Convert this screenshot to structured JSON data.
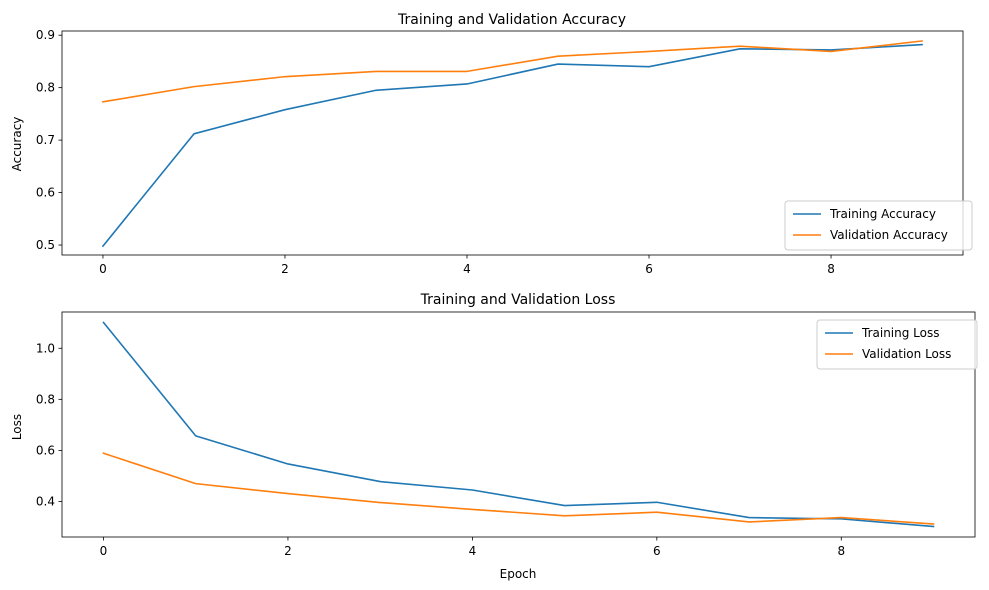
{
  "chart_data": [
    {
      "type": "line",
      "title": "Training and Validation Accuracy",
      "xlabel": "",
      "ylabel": "Accuracy",
      "xlim": [
        -0.45,
        9.45
      ],
      "ylim": [
        0.481,
        0.908
      ],
      "xticks": [
        0,
        2,
        4,
        6,
        8
      ],
      "yticks": [
        0.5,
        0.6,
        0.7,
        0.8,
        0.9
      ],
      "ytick_format": 1,
      "grid": false,
      "legend_position": "lower-right",
      "x": [
        0,
        1,
        2,
        3,
        4,
        5,
        6,
        7,
        8,
        9
      ],
      "series": [
        {
          "name": "Training Accuracy",
          "color": "#1f77b4",
          "values": [
            0.498,
            0.712,
            0.758,
            0.795,
            0.807,
            0.845,
            0.84,
            0.874,
            0.872,
            0.882
          ]
        },
        {
          "name": "Validation Accuracy",
          "color": "#ff7f0e",
          "values": [
            0.773,
            0.802,
            0.821,
            0.831,
            0.831,
            0.86,
            0.869,
            0.879,
            0.869,
            0.889
          ]
        }
      ]
    },
    {
      "type": "line",
      "title": "Training and Validation Loss",
      "xlabel": "Epoch",
      "ylabel": "Loss",
      "xlim": [
        -0.45,
        9.45
      ],
      "ylim": [
        0.261,
        1.142
      ],
      "xticks": [
        0,
        2,
        4,
        6,
        8
      ],
      "yticks": [
        0.4,
        0.6,
        0.8,
        1.0
      ],
      "ytick_format": 1,
      "grid": false,
      "legend_position": "upper-right",
      "x": [
        0,
        1,
        2,
        3,
        4,
        5,
        6,
        7,
        8,
        9
      ],
      "series": [
        {
          "name": "Training Loss",
          "color": "#1f77b4",
          "values": [
            1.101,
            0.657,
            0.547,
            0.478,
            0.445,
            0.384,
            0.397,
            0.337,
            0.332,
            0.302
          ]
        },
        {
          "name": "Validation Loss",
          "color": "#ff7f0e",
          "values": [
            0.589,
            0.47,
            0.431,
            0.396,
            0.369,
            0.344,
            0.358,
            0.32,
            0.337,
            0.312
          ]
        }
      ]
    }
  ]
}
